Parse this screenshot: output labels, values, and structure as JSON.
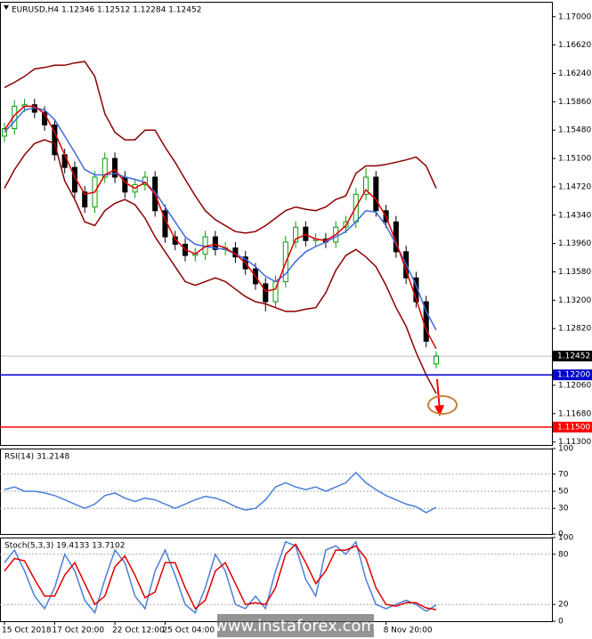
{
  "chart_data": [
    {
      "type": "candlestick",
      "title": "EURUSD,H4  1.12346 1.12512 1.12284 1.12452",
      "categories": [
        "15 Oct 2018",
        null,
        null,
        null,
        null,
        "17 Oct 20:00",
        null,
        null,
        null,
        null,
        null,
        "22 Oct 12:00",
        null,
        null,
        null,
        null,
        "25 Oct 04:00",
        null,
        null,
        null,
        null,
        null,
        null,
        null,
        null,
        null,
        null,
        null,
        null,
        null,
        null,
        null,
        null,
        null,
        null,
        null,
        null,
        null,
        "8 Nov 20:00",
        null,
        null,
        null,
        null,
        null
      ],
      "open": [
        1.154,
        1.155,
        1.158,
        1.1582,
        1.1572,
        1.1555,
        1.1515,
        1.1498,
        1.1465,
        1.1445,
        1.1485,
        1.151,
        1.1485,
        1.1465,
        1.1475,
        1.1485,
        1.144,
        1.1405,
        1.1395,
        1.138,
        1.1382,
        1.1405,
        1.1388,
        1.139,
        1.1378,
        1.1362,
        1.1342,
        1.1318,
        1.1345,
        1.1398,
        1.1418,
        1.14,
        1.1402,
        1.1398,
        1.1418,
        1.1425,
        1.1462,
        1.1485,
        1.144,
        1.1425,
        1.1385,
        1.135,
        1.1318,
        1.12346
      ],
      "high": [
        1.1558,
        1.1588,
        1.159,
        1.159,
        1.158,
        1.1563,
        1.1523,
        1.1506,
        1.1473,
        1.1493,
        1.1518,
        1.1518,
        1.1493,
        1.1483,
        1.1493,
        1.1493,
        1.1448,
        1.1413,
        1.1403,
        1.139,
        1.1413,
        1.1413,
        1.1398,
        1.1398,
        1.1386,
        1.137,
        1.135,
        1.1353,
        1.1406,
        1.1426,
        1.1426,
        1.141,
        1.141,
        1.1426,
        1.1433,
        1.147,
        1.1497,
        1.1493,
        1.1448,
        1.1433,
        1.1393,
        1.1358,
        1.1326,
        1.12512
      ],
      "low": [
        1.1532,
        1.1542,
        1.1572,
        1.1564,
        1.1547,
        1.1507,
        1.149,
        1.1457,
        1.1437,
        1.1437,
        1.1477,
        1.1477,
        1.1457,
        1.1457,
        1.1467,
        1.1432,
        1.1397,
        1.1387,
        1.1372,
        1.1372,
        1.1374,
        1.138,
        1.138,
        1.137,
        1.1354,
        1.1334,
        1.1305,
        1.131,
        1.1337,
        1.139,
        1.1392,
        1.1392,
        1.139,
        1.139,
        1.141,
        1.1417,
        1.1454,
        1.1432,
        1.1417,
        1.1377,
        1.1342,
        1.131,
        1.1257,
        1.12284
      ],
      "close": [
        1.155,
        1.158,
        1.1582,
        1.1572,
        1.1555,
        1.1515,
        1.1498,
        1.1465,
        1.1445,
        1.1485,
        1.151,
        1.1485,
        1.1465,
        1.1475,
        1.1485,
        1.144,
        1.1405,
        1.1395,
        1.138,
        1.1382,
        1.1405,
        1.1388,
        1.139,
        1.1378,
        1.1362,
        1.1342,
        1.1318,
        1.1345,
        1.1398,
        1.1418,
        1.14,
        1.1402,
        1.1398,
        1.1418,
        1.1425,
        1.1462,
        1.1485,
        1.144,
        1.1425,
        1.1385,
        1.135,
        1.1318,
        1.1265,
        1.12452
      ],
      "up_color": "#00a000",
      "down_color": "#000000",
      "series": [
        {
          "color": "#8b0000",
          "values": [
            1.1605,
            1.1612,
            1.162,
            1.163,
            1.1632,
            1.1635,
            1.1635,
            1.1638,
            1.164,
            1.162,
            1.157,
            1.1545,
            1.1535,
            1.1535,
            1.1548,
            1.1548,
            1.1525,
            1.1505,
            1.1482,
            1.146,
            1.144,
            1.1428,
            1.142,
            1.1412,
            1.141,
            1.1412,
            1.142,
            1.143,
            1.144,
            1.1445,
            1.1442,
            1.144,
            1.1445,
            1.1455,
            1.146,
            1.149,
            1.15,
            1.15,
            1.1502,
            1.1505,
            1.1508,
            1.1512,
            1.15,
            1.147
          ]
        },
        {
          "color": "#8b0000",
          "values": [
            1.147,
            1.1495,
            1.1515,
            1.153,
            1.1535,
            1.153,
            1.148,
            1.1455,
            1.1425,
            1.142,
            1.144,
            1.145,
            1.1455,
            1.1448,
            1.143,
            1.1405,
            1.1385,
            1.1365,
            1.1345,
            1.134,
            1.1345,
            1.135,
            1.1345,
            1.1335,
            1.1325,
            1.1318,
            1.1315,
            1.131,
            1.1305,
            1.1305,
            1.1308,
            1.131,
            1.133,
            1.136,
            1.138,
            1.1388,
            1.1378,
            1.1365,
            1.134,
            1.131,
            1.1285,
            1.125,
            1.122,
            1.1195
          ]
        },
        {
          "color": "#4169e1",
          "values": [
            1.1545,
            1.156,
            1.1575,
            1.1578,
            1.1575,
            1.1562,
            1.154,
            1.1518,
            1.1495,
            1.1488,
            1.1488,
            1.149,
            1.1485,
            1.1482,
            1.1478,
            1.1465,
            1.1445,
            1.1425,
            1.1405,
            1.1395,
            1.1392,
            1.139,
            1.1388,
            1.1382,
            1.1375,
            1.1365,
            1.1352,
            1.1345,
            1.1355,
            1.1372,
            1.1385,
            1.1392,
            1.1398,
            1.1405,
            1.1412,
            1.1425,
            1.144,
            1.1438,
            1.142,
            1.1395,
            1.1368,
            1.134,
            1.1305,
            1.128
          ]
        },
        {
          "color": "#e00000",
          "values": [
            1.1548,
            1.1568,
            1.158,
            1.158,
            1.157,
            1.1545,
            1.1515,
            1.1485,
            1.1462,
            1.1465,
            1.1488,
            1.1495,
            1.1478,
            1.147,
            1.1478,
            1.1462,
            1.1428,
            1.1402,
            1.1388,
            1.1382,
            1.1392,
            1.1395,
            1.139,
            1.1382,
            1.137,
            1.1352,
            1.1332,
            1.1335,
            1.137,
            1.1402,
            1.1408,
            1.1402,
            1.14,
            1.1408,
            1.142,
            1.1445,
            1.1468,
            1.1455,
            1.1432,
            1.1398,
            1.136,
            1.1322,
            1.128,
            1.1255
          ]
        }
      ],
      "levels": [
        {
          "value": 1.12452,
          "label": "1.12452",
          "color": "#000000"
        },
        {
          "value": 1.122,
          "label": "1.12200",
          "color": "#0000cc"
        },
        {
          "value": 1.115,
          "label": "1.11500",
          "color": "#ff0000"
        }
      ],
      "ylim": [
        1.1126,
        1.172
      ],
      "yticks": [
        {
          "value": 1.17,
          "label": "1.17000"
        },
        {
          "value": 1.1662,
          "label": "1.16620"
        },
        {
          "value": 1.1624,
          "label": "1.16240"
        },
        {
          "value": 1.1586,
          "label": "1.15860"
        },
        {
          "value": 1.1548,
          "label": "1.15480"
        },
        {
          "value": 1.151,
          "label": "1.15100"
        },
        {
          "value": 1.1472,
          "label": "1.14720"
        },
        {
          "value": 1.1434,
          "label": "1.14340"
        },
        {
          "value": 1.1396,
          "label": "1.13960"
        },
        {
          "value": 1.1358,
          "label": "1.13580"
        },
        {
          "value": 1.132,
          "label": "1.13200"
        },
        {
          "value": 1.1282,
          "label": "1.12820"
        },
        {
          "value": 1.1206,
          "label": "1.12060"
        },
        {
          "value": 1.1168,
          "label": "1.11680"
        },
        {
          "value": 1.113,
          "label": "1.11300"
        }
      ],
      "grid": false
    },
    {
      "type": "line",
      "title": "RSI(14) 31.2148",
      "series": [
        {
          "color": "#4a7fd8",
          "values": [
            52,
            55,
            50,
            50,
            48,
            45,
            40,
            35,
            30,
            35,
            45,
            48,
            42,
            38,
            42,
            40,
            35,
            30,
            35,
            40,
            44,
            42,
            38,
            32,
            28,
            30,
            40,
            55,
            60,
            55,
            52,
            55,
            50,
            55,
            60,
            72,
            60,
            52,
            45,
            40,
            35,
            32,
            25,
            31.2148
          ]
        }
      ],
      "ylim": [
        0,
        100
      ],
      "yticks": [
        100,
        70,
        50,
        30,
        0
      ],
      "grid": true
    },
    {
      "type": "line",
      "title": "Stoch(5,3,3) 19.4133 13.7102",
      "series": [
        {
          "color": "#4a7fd8",
          "values": [
            70,
            85,
            60,
            30,
            15,
            40,
            80,
            60,
            25,
            10,
            50,
            85,
            70,
            30,
            15,
            60,
            85,
            55,
            20,
            10,
            40,
            80,
            60,
            20,
            15,
            30,
            15,
            60,
            95,
            90,
            50,
            30,
            85,
            90,
            80,
            95,
            50,
            20,
            15,
            20,
            25,
            20,
            12,
            19.4133
          ]
        },
        {
          "color": "#e00000",
          "values": [
            60,
            75,
            72,
            50,
            30,
            30,
            55,
            70,
            45,
            20,
            30,
            65,
            78,
            55,
            28,
            35,
            70,
            70,
            40,
            15,
            25,
            60,
            70,
            45,
            20,
            22,
            20,
            40,
            80,
            92,
            70,
            45,
            60,
            85,
            85,
            90,
            75,
            40,
            20,
            18,
            22,
            22,
            16,
            13.7102
          ]
        }
      ],
      "ylim": [
        0,
        100
      ],
      "yticks": [
        100,
        80,
        20,
        0
      ],
      "grid": true
    }
  ],
  "watermark": "www.instaforex.com"
}
